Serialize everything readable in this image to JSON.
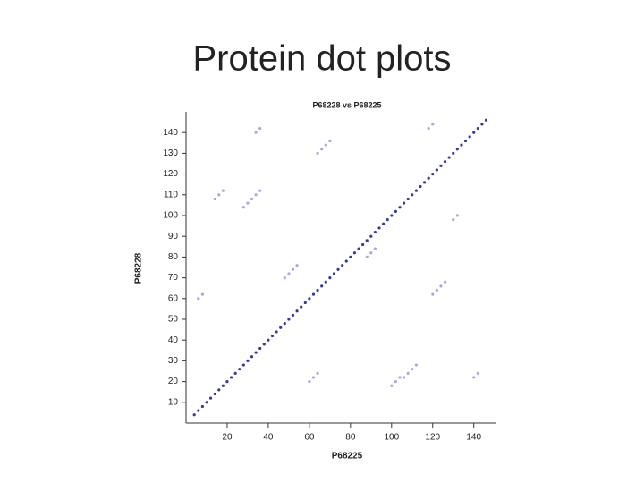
{
  "heading": "Protein dot plots",
  "chart_data": {
    "type": "scatter",
    "title": "P68228 vs P68225",
    "x_label": "P68225",
    "y_label": "P68228",
    "xlim": [
      0,
      151
    ],
    "ylim": [
      0,
      150
    ],
    "xticks": [
      20,
      40,
      60,
      80,
      100,
      120,
      140
    ],
    "yticks": [
      10,
      20,
      30,
      40,
      50,
      60,
      70,
      80,
      90,
      100,
      110,
      120,
      130,
      140
    ],
    "series": [
      {
        "color": "#3a3a9a",
        "x": [
          4,
          6,
          8,
          10,
          12,
          14,
          16,
          18,
          20,
          22,
          24,
          26,
          28,
          30,
          32,
          34,
          36,
          38,
          40,
          42,
          44,
          46,
          48,
          50,
          52,
          54,
          56,
          58,
          60,
          62,
          64,
          66,
          68,
          70,
          72,
          74,
          76,
          78,
          80,
          82,
          84,
          86,
          88,
          90,
          92,
          94,
          96,
          98,
          100,
          102,
          104,
          106,
          108,
          110,
          112,
          114,
          116,
          118,
          120,
          122,
          124,
          126,
          128,
          130,
          132,
          134,
          136,
          138,
          140,
          142,
          144,
          146
        ],
        "values": [
          4,
          6,
          8,
          10,
          12,
          14,
          16,
          18,
          20,
          22,
          24,
          26,
          28,
          30,
          32,
          34,
          36,
          38,
          40,
          42,
          44,
          46,
          48,
          50,
          52,
          54,
          56,
          58,
          60,
          62,
          64,
          66,
          68,
          70,
          72,
          74,
          76,
          78,
          80,
          82,
          84,
          86,
          88,
          90,
          92,
          94,
          96,
          98,
          100,
          102,
          104,
          106,
          108,
          110,
          112,
          114,
          116,
          118,
          120,
          122,
          124,
          126,
          128,
          130,
          132,
          134,
          136,
          138,
          140,
          142,
          144,
          146
        ]
      },
      {
        "color": "#a8a8e0",
        "x": [
          28,
          30,
          32,
          34,
          36,
          48,
          50,
          52,
          54,
          64,
          66,
          68,
          70,
          106,
          108,
          110,
          112,
          120,
          122,
          124,
          126,
          88,
          90,
          92,
          14,
          16,
          18,
          34,
          36,
          60,
          62,
          64,
          100,
          102,
          104,
          6,
          8,
          130,
          132,
          140,
          142,
          118,
          120
        ],
        "values": [
          104,
          106,
          108,
          110,
          112,
          70,
          72,
          74,
          76,
          130,
          132,
          134,
          136,
          22,
          24,
          26,
          28,
          62,
          64,
          66,
          68,
          80,
          82,
          84,
          108,
          110,
          112,
          140,
          142,
          20,
          22,
          24,
          18,
          20,
          22,
          60,
          62,
          98,
          100,
          22,
          24,
          142,
          144
        ]
      }
    ]
  }
}
